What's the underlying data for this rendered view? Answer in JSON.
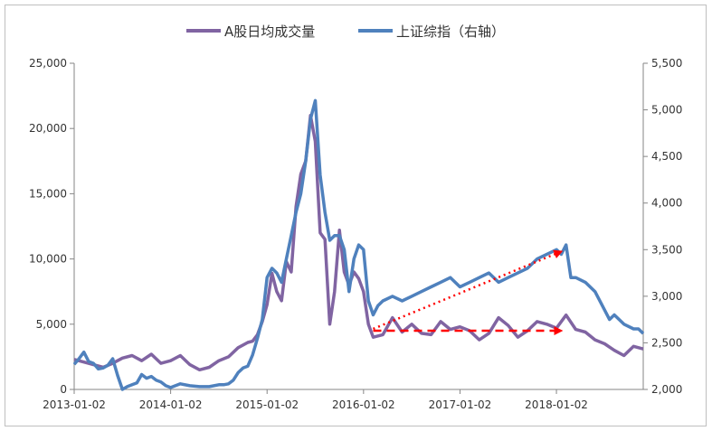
{
  "chart_data": {
    "type": "line",
    "title": "",
    "legend": {
      "placement": "top-center",
      "items": [
        "A股日均成交量",
        "上证综指（右轴）"
      ]
    },
    "x_tick_labels": [
      "2013-01-02",
      "2014-01-02",
      "2015-01-02",
      "2016-01-02",
      "2017-01-02",
      "2018-01-02"
    ],
    "x_range": [
      2013.0,
      2018.9
    ],
    "y_left": {
      "range": [
        0,
        25000
      ],
      "ticks": [
        "0",
        "5,000",
        "10,000",
        "15,000",
        "20,000",
        "25,000"
      ]
    },
    "y_right": {
      "range": [
        2000,
        5500
      ],
      "ticks": [
        "2,000",
        "2,500",
        "3,000",
        "3,500",
        "4,000",
        "4,500",
        "5,000",
        "5,500"
      ]
    },
    "series": [
      {
        "name": "A股日均成交量",
        "axis": "left",
        "color": "#8064a2",
        "x": [
          2013.0,
          2013.1,
          2013.2,
          2013.3,
          2013.4,
          2013.5,
          2013.6,
          2013.7,
          2013.8,
          2013.9,
          2014.0,
          2014.1,
          2014.2,
          2014.3,
          2014.4,
          2014.5,
          2014.6,
          2014.7,
          2014.8,
          2014.85,
          2014.9,
          2014.95,
          2015.0,
          2015.05,
          2015.1,
          2015.15,
          2015.2,
          2015.25,
          2015.3,
          2015.35,
          2015.4,
          2015.45,
          2015.5,
          2015.55,
          2015.6,
          2015.65,
          2015.7,
          2015.75,
          2015.8,
          2015.85,
          2015.9,
          2015.95,
          2016.0,
          2016.05,
          2016.1,
          2016.2,
          2016.3,
          2016.4,
          2016.5,
          2016.6,
          2016.7,
          2016.8,
          2016.9,
          2017.0,
          2017.1,
          2017.2,
          2017.3,
          2017.4,
          2017.5,
          2017.6,
          2017.7,
          2017.8,
          2017.9,
          2018.0,
          2018.1,
          2018.2,
          2018.3,
          2018.4,
          2018.5,
          2018.6,
          2018.7,
          2018.8,
          2018.9
        ],
        "values": [
          2300,
          2100,
          1900,
          1700,
          2000,
          2400,
          2600,
          2200,
          2700,
          2000,
          2200,
          2600,
          1900,
          1500,
          1700,
          2200,
          2500,
          3200,
          3600,
          3700,
          4200,
          5200,
          6500,
          8900,
          7500,
          6800,
          9800,
          9000,
          14000,
          16500,
          17500,
          21000,
          19000,
          12000,
          11500,
          5000,
          7500,
          12200,
          9000,
          8000,
          9000,
          8500,
          7500,
          5000,
          4000,
          4200,
          5500,
          4400,
          5000,
          4300,
          4200,
          5200,
          4600,
          4800,
          4500,
          3800,
          4300,
          5500,
          4900,
          4000,
          4500,
          5200,
          5000,
          4700,
          5700,
          4600,
          4400,
          3800,
          3500,
          3000,
          2600,
          3300,
          3100
        ]
      },
      {
        "name": "上证综指（右轴）",
        "axis": "right",
        "color": "#4f81bd",
        "x": [
          2013.0,
          2013.05,
          2013.1,
          2013.15,
          2013.2,
          2013.25,
          2013.3,
          2013.35,
          2013.4,
          2013.45,
          2013.5,
          2013.55,
          2013.6,
          2013.65,
          2013.7,
          2013.75,
          2013.8,
          2013.85,
          2013.9,
          2013.95,
          2014.0,
          2014.1,
          2014.2,
          2014.3,
          2014.4,
          2014.5,
          2014.55,
          2014.6,
          2014.65,
          2014.7,
          2014.75,
          2014.8,
          2014.85,
          2014.9,
          2014.95,
          2015.0,
          2015.05,
          2015.1,
          2015.15,
          2015.2,
          2015.25,
          2015.3,
          2015.35,
          2015.4,
          2015.45,
          2015.5,
          2015.55,
          2015.6,
          2015.65,
          2015.7,
          2015.75,
          2015.8,
          2015.85,
          2015.9,
          2015.95,
          2016.0,
          2016.05,
          2016.1,
          2016.15,
          2016.2,
          2016.3,
          2016.4,
          2016.5,
          2016.6,
          2016.7,
          2016.8,
          2016.9,
          2017.0,
          2017.1,
          2017.2,
          2017.3,
          2017.4,
          2017.5,
          2017.6,
          2017.7,
          2017.8,
          2017.9,
          2018.0,
          2018.05,
          2018.1,
          2018.15,
          2018.2,
          2018.3,
          2018.4,
          2018.5,
          2018.55,
          2018.6,
          2018.7,
          2018.8,
          2018.85,
          2018.9
        ],
        "values": [
          2270,
          2330,
          2400,
          2300,
          2280,
          2220,
          2230,
          2260,
          2330,
          2150,
          2000,
          2030,
          2050,
          2070,
          2160,
          2120,
          2140,
          2100,
          2080,
          2040,
          2020,
          2060,
          2040,
          2030,
          2030,
          2050,
          2050,
          2060,
          2100,
          2180,
          2230,
          2250,
          2370,
          2550,
          2750,
          3200,
          3300,
          3250,
          3150,
          3400,
          3650,
          3900,
          4100,
          4450,
          4900,
          5100,
          4300,
          3900,
          3600,
          3650,
          3650,
          3500,
          3050,
          3400,
          3550,
          3500,
          2950,
          2800,
          2900,
          2950,
          3000,
          2950,
          3000,
          3050,
          3100,
          3150,
          3200,
          3100,
          3150,
          3200,
          3250,
          3150,
          3200,
          3250,
          3300,
          3400,
          3450,
          3500,
          3450,
          3550,
          3200,
          3200,
          3150,
          3050,
          2850,
          2750,
          2800,
          2700,
          2650,
          2650,
          2600
        ]
      }
    ],
    "annotations": [
      {
        "type": "arrow",
        "style": "dotted",
        "color": "#ff0000",
        "axis": "right",
        "from": [
          2016.1,
          2650
        ],
        "to": [
          2018.05,
          3480
        ]
      },
      {
        "type": "arrow",
        "style": "dashed",
        "color": "#ff0000",
        "axis": "left",
        "from": [
          2016.1,
          4500
        ],
        "to": [
          2018.05,
          4500
        ]
      }
    ]
  }
}
